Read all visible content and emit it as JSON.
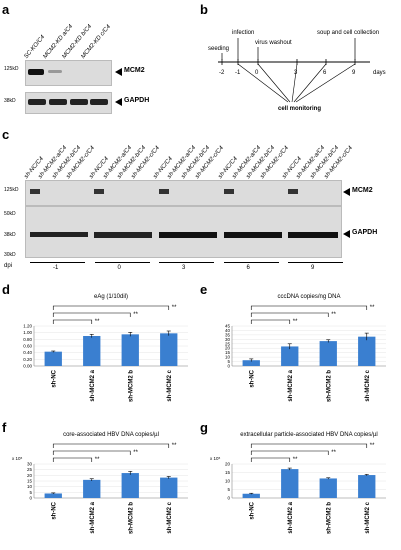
{
  "panels": {
    "a": {
      "label": "a",
      "lanes": [
        "SC-KO/C4",
        "MCM2-KD a/C4",
        "MCM2-KD b/C4",
        "MCM2-KD c/C4"
      ],
      "markers": [
        "125kD",
        "38kD"
      ],
      "bands": [
        "MCM2",
        "GAPDH"
      ]
    },
    "b": {
      "label": "b",
      "days": [
        "-2",
        "-1",
        "0",
        "3",
        "6",
        "9"
      ],
      "axis_unit": "days",
      "events": [
        "seeding",
        "infection",
        "virus washout",
        "soup and cell collection"
      ],
      "monitor": "cell monitoring"
    },
    "c": {
      "label": "c",
      "lane_groups": [
        [
          "sh-NC/C4",
          "sh-MCM2-a/C4",
          "sh-MCM2-b/C4",
          "sh-MCM2-c/C4"
        ],
        [
          "sh-NC/C4",
          "sh-MCM2-a/C4",
          "sh-MCM2-b/C4",
          "sh-MCM2-c/C4"
        ],
        [
          "sh-NC/C4",
          "sh-MCM2-a/C4",
          "sh-MCM2-b/C4",
          "sh-MCM2-c/C4"
        ],
        [
          "sh-NC/C4",
          "sh-MCM2-a/C4",
          "sh-MCM2-b/C4",
          "sh-MCM2-c/C4"
        ],
        [
          "sh-NC/C4",
          "sh-MCM2-a/C4",
          "sh-MCM2-b/C4",
          "sh-MCM2-c/C4"
        ]
      ],
      "markers": [
        "125kD",
        "50kD",
        "38kD",
        "30kD"
      ],
      "bands": [
        "MCM2",
        "GAPDH"
      ],
      "dpi_label": "dpi",
      "dpi_values": [
        "-1",
        "0",
        "3",
        "6",
        "9"
      ]
    }
  },
  "chart_data": [
    {
      "panel": "d",
      "type": "bar",
      "title": "eAg (1/10dil)",
      "categories": [
        "sh-NC",
        "sh-MCM2 a",
        "sh-MCM2 b",
        "sh-MCM2 c"
      ],
      "values": [
        0.43,
        0.9,
        0.95,
        0.98
      ],
      "errors": [
        0.02,
        0.05,
        0.06,
        0.07
      ],
      "ylim": [
        0,
        1.2
      ],
      "yticks": [
        "0.00",
        "0.20",
        "0.40",
        "0.60",
        "0.80",
        "1.00",
        "1.20"
      ],
      "sig": [
        "**",
        "**",
        "**"
      ],
      "color": "#3a7fd0"
    },
    {
      "panel": "e",
      "type": "bar",
      "title": "cccDNA copies/ng DNA",
      "categories": [
        "sh-NC",
        "sh-MCM2 a",
        "sh-MCM2 b",
        "sh-MCM2 c"
      ],
      "values": [
        6.5,
        22,
        28,
        33
      ],
      "errors": [
        1.5,
        3,
        1.5,
        4
      ],
      "ylim": [
        0,
        45
      ],
      "yticks": [
        "0",
        "5",
        "10",
        "15",
        "20",
        "25",
        "30",
        "35",
        "40",
        "45"
      ],
      "sig": [
        "**",
        "**",
        "**"
      ],
      "color": "#3a7fd0"
    },
    {
      "panel": "f",
      "type": "bar",
      "title": "core-associated HBV DNA copies/µl",
      "categories": [
        "sh-NC",
        "sh-MCM2 a",
        "sh-MCM2 b",
        "sh-MCM2 c"
      ],
      "values": [
        4,
        16,
        22,
        18
      ],
      "errors": [
        0.5,
        1,
        1.5,
        1
      ],
      "ylim": [
        0,
        30
      ],
      "yticks": [
        "0",
        "5",
        "10",
        "15",
        "20",
        "25",
        "30"
      ],
      "ymult": "x 10⁵",
      "sig": [
        "**",
        "**",
        "**"
      ],
      "color": "#3a7fd0"
    },
    {
      "panel": "g",
      "type": "bar",
      "title": "extracellular particle-associated HBV DNA copies/µl",
      "categories": [
        "sh-NC",
        "sh-MCM2 a",
        "sh-MCM2 b",
        "sh-MCM2 c"
      ],
      "values": [
        2.5,
        17,
        11.5,
        13.5
      ],
      "errors": [
        0.3,
        0.6,
        0.4,
        0.4
      ],
      "ylim": [
        0,
        20
      ],
      "yticks": [
        "0",
        "5",
        "10",
        "15",
        "20"
      ],
      "ymult": "x 10⁵",
      "sig": [
        "**",
        "**",
        "**"
      ],
      "color": "#3a7fd0"
    }
  ]
}
